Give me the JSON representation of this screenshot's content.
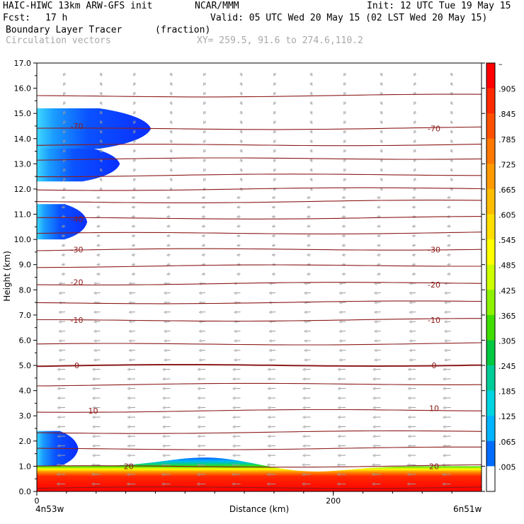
{
  "header": {
    "model": "HAIC-HIWC 13km ARW-GFS init",
    "org": "NCAR/MMM",
    "init": "Init: 12 UTC Tue 19 May 15",
    "fcst_label": "Fcst:",
    "fcst_value": "17 h",
    "valid": "Valid: 05 UTC Wed 20 May 15 (02 LST Wed 20 May 15)",
    "field": "Boundary Layer Tracer",
    "units": "(fraction)",
    "overlay": "Circulation vectors",
    "xy": "XY= 259.5, 91.6 to 274.6,110.2"
  },
  "chart_data": {
    "type": "cross-section",
    "xlabel": "Distance (km)",
    "ylabel": "Height (km)",
    "xlim": [
      0,
      300
    ],
    "ylim": [
      0.0,
      17.0
    ],
    "x_ticks": [
      "0",
      "200"
    ],
    "x_end_labels": {
      "left": "4n53w",
      "right": "6n51w"
    },
    "y_ticks": [
      "0.0",
      "1.0",
      "2.0",
      "3.0",
      "4.0",
      "5.0",
      "6.0",
      "7.0",
      "8.0",
      "9.0",
      "10.0",
      "11.0",
      "12.0",
      "13.0",
      "14.0",
      "15.0",
      "16.0",
      "17.0"
    ],
    "colorbar": {
      "labels": [
        "–",
        ".905",
        ".845",
        ".785",
        ".725",
        ".665",
        ".605",
        ".545",
        ".485",
        ".425",
        ".365",
        ".305",
        ".245",
        ".185",
        ".125",
        ".065",
        ".005"
      ],
      "colors": [
        "#ff0000",
        "#ff2a00",
        "#ff5000",
        "#ff7800",
        "#ff9a00",
        "#ffbd00",
        "#ffdf00",
        "#ffff00",
        "#ccff00",
        "#8cf200",
        "#3fdd00",
        "#00c840",
        "#00cc99",
        "#00d4e0",
        "#00b4ff",
        "#006cff",
        "#ffffff"
      ]
    },
    "temperature_contour_labels": [
      {
        "text": "-70",
        "x_km": 27,
        "z_km": 14.5
      },
      {
        "text": "-70",
        "x_km": 268,
        "z_km": 14.4
      },
      {
        "text": "-40",
        "x_km": 27,
        "z_km": 10.8
      },
      {
        "text": "-30",
        "x_km": 27,
        "z_km": 9.6
      },
      {
        "text": "-30",
        "x_km": 268,
        "z_km": 9.6
      },
      {
        "text": "-20",
        "x_km": 27,
        "z_km": 8.3
      },
      {
        "text": "-20",
        "x_km": 268,
        "z_km": 8.2
      },
      {
        "text": "-10",
        "x_km": 27,
        "z_km": 6.8
      },
      {
        "text": "-10",
        "x_km": 268,
        "z_km": 6.8
      },
      {
        "text": "0",
        "x_km": 27,
        "z_km": 5.0
      },
      {
        "text": "0",
        "x_km": 268,
        "z_km": 5.0
      },
      {
        "text": "10",
        "x_km": 38,
        "z_km": 3.2
      },
      {
        "text": "10",
        "x_km": 268,
        "z_km": 3.3
      },
      {
        "text": "20",
        "x_km": 62,
        "z_km": 1.0
      },
      {
        "text": "20",
        "x_km": 268,
        "z_km": 1.0
      }
    ],
    "temperature_contour_heights_km": [
      0.15,
      1.0,
      1.7,
      2.35,
      3.2,
      4.25,
      5.0,
      5.85,
      6.8,
      7.5,
      8.25,
      8.95,
      9.6,
      10.25,
      10.85,
      11.5,
      12.0,
      12.55,
      13.2,
      13.75,
      14.4,
      15.7
    ],
    "tracer_regions": [
      {
        "level": 1.0,
        "zmin_km": 0.0,
        "zmax_km": 1.1,
        "xmin_km": 0,
        "xmax_km": 300
      },
      {
        "level": 0.06,
        "zmin_km": 12.3,
        "zmax_km": 13.7,
        "xmin_km": 0,
        "xmax_km": 56
      },
      {
        "level": 0.06,
        "zmin_km": 13.6,
        "zmax_km": 15.2,
        "xmin_km": 0,
        "xmax_km": 77
      },
      {
        "level": 0.04,
        "zmin_km": 10.0,
        "zmax_km": 11.4,
        "xmin_km": 0,
        "xmax_km": 34
      },
      {
        "level": 0.04,
        "zmin_km": 1.0,
        "zmax_km": 2.4,
        "xmin_km": 0,
        "xmax_km": 28
      }
    ]
  }
}
